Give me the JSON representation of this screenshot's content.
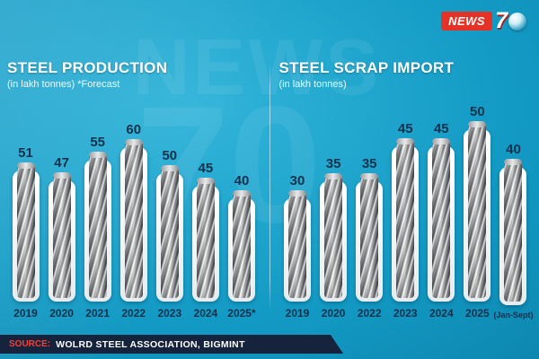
{
  "logo": {
    "news": "NEWS",
    "seven": "7"
  },
  "watermark": {
    "line1": "NEWS",
    "line2": "70"
  },
  "chart_data": [
    {
      "type": "bar",
      "title": "STEEL PRODUCTION",
      "subtitle": "(in lakh tonnes) *Forecast",
      "unit": "lakh tonnes",
      "categories": [
        "2019",
        "2020",
        "2021",
        "2022",
        "2023",
        "2024",
        "2025*"
      ],
      "values": [
        51,
        47,
        55,
        60,
        50,
        45,
        40
      ],
      "ylim": [
        0,
        60
      ],
      "grid": false,
      "legend": "none"
    },
    {
      "type": "bar",
      "title": "STEEL SCRAP IMPORT",
      "subtitle": "(in lakh tonnes)",
      "unit": "lakh tonnes",
      "categories": [
        "2019",
        "2020",
        "2022",
        "2023",
        "2024",
        "2025",
        "(Jan-Sept)"
      ],
      "values": [
        30,
        35,
        35,
        45,
        45,
        50,
        40
      ],
      "ylim": [
        0,
        50
      ],
      "grid": false,
      "legend": "none"
    }
  ],
  "footer": {
    "source_label": "SOURCE:",
    "source_text": "WOLRD STEEL ASSOCIATION, BIGMINT"
  }
}
